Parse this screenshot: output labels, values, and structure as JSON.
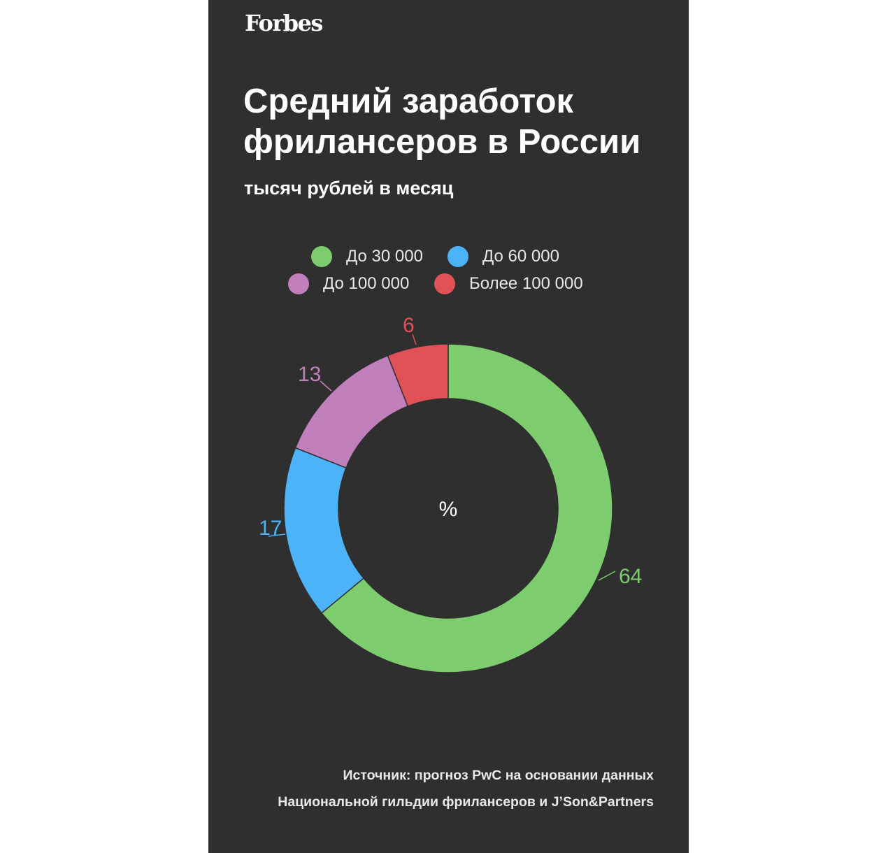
{
  "brand": "Forbes",
  "chart_data": {
    "type": "pie",
    "title_lines": [
      "Средний заработок",
      "фрилансеров в России"
    ],
    "subtitle": "тысяч рублей в месяц",
    "center_label": "%",
    "categories": [
      "До 30 000",
      "До 60 000",
      "До 100 000",
      "Более 100 000"
    ],
    "values": [
      64,
      17,
      13,
      6
    ],
    "colors": [
      "#7dcd6e",
      "#4db3f8",
      "#c17fbb",
      "#e05255"
    ],
    "legend_position": "top",
    "data_labels": [
      "64",
      "17",
      "13",
      "6"
    ]
  },
  "source_lines": [
    "Источник: прогноз PwC на основании данных",
    "Национальной гильдии фрилансеров и J’Son&Partners"
  ]
}
